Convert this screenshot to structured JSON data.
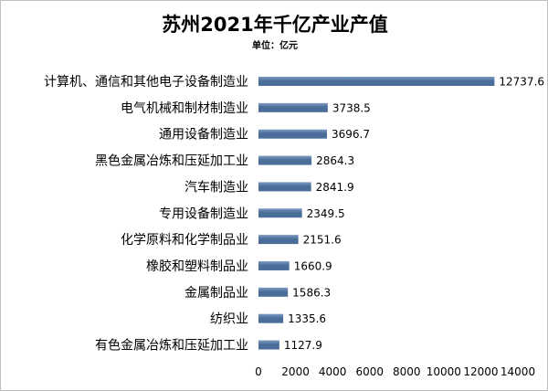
{
  "chart_data": {
    "type": "bar",
    "orientation": "horizontal",
    "title": "苏州2021年千亿产业产值",
    "subtitle": "单位：亿元",
    "categories": [
      "计算机、通信和其他电子设备制造业",
      "电气机械和制材制造业",
      "通用设备制造业",
      "黑色金属冶炼和压延加工业",
      "汽车制造业",
      "专用设备制造业",
      "化学原料和化学制品业",
      "橡胶和塑料制品业",
      "金属制品业",
      "纺织业",
      "有色金属冶炼和压延加工业"
    ],
    "values": [
      12737.6,
      3738.5,
      3696.7,
      2864.3,
      2841.9,
      2349.5,
      2151.6,
      1660.9,
      1586.3,
      1335.6,
      1127.9
    ],
    "value_labels": [
      "12737.6",
      "3738.5",
      "3696.7",
      "2864.3",
      "2841.9",
      "2349.5",
      "2151.6",
      "1660.9",
      "1586.3",
      "1335.6",
      "1127.9"
    ],
    "xlim": [
      0,
      14000
    ],
    "x_ticks": [
      "0",
      "2000",
      "4000",
      "6000",
      "8000",
      "10000",
      "12000",
      "14000"
    ],
    "grid": false,
    "legend": "none",
    "bar_color": "#4a6e99",
    "bar_highlight_color": "#7d9bc3"
  }
}
